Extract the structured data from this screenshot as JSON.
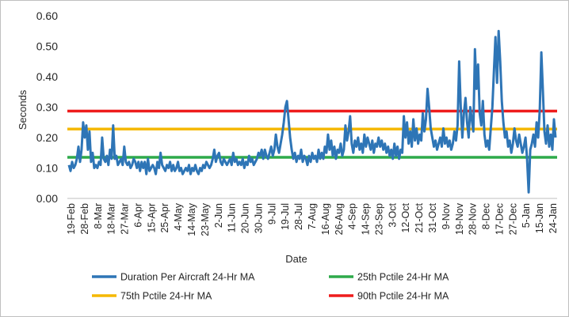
{
  "chart_data": {
    "type": "line",
    "title": "",
    "xlabel": "Date",
    "ylabel": "Seconds",
    "ylim": [
      0,
      0.6
    ],
    "yticks": [
      "0.00",
      "0.10",
      "0.20",
      "0.30",
      "0.40",
      "0.50",
      "0.60"
    ],
    "xticks": [
      "19-Feb",
      "28-Feb",
      "8-Mar",
      "18-Mar",
      "27-Mar",
      "6-Apr",
      "15-Apr",
      "25-Apr",
      "4-May",
      "14-May",
      "23-May",
      "2-Jun",
      "11-Jun",
      "20-Jun",
      "30-Jun",
      "9-Jul",
      "19-Jul",
      "28-Jul",
      "7-Aug",
      "16-Aug",
      "26-Aug",
      "4-Sep",
      "14-Sep",
      "23-Sep",
      "3-Oct",
      "12-Oct",
      "21-Oct",
      "31-Oct",
      "9-Nov",
      "19-Nov",
      "28-Nov",
      "8-Dec",
      "17-Dec",
      "27-Dec",
      "5-Jan",
      "15-Jan",
      "24-Jan"
    ],
    "grid": false,
    "legend_position": "bottom",
    "series": [
      {
        "name": "Duration Per Aircraft 24-Hr MA",
        "color": "#2e75b6",
        "kind": "line",
        "points": [
          [
            0,
            0.11
          ],
          [
            1,
            0.09
          ],
          [
            2,
            0.12
          ],
          [
            3,
            0.1
          ],
          [
            4,
            0.11
          ],
          [
            5,
            0.13
          ],
          [
            6,
            0.17
          ],
          [
            7,
            0.12
          ],
          [
            8,
            0.16
          ],
          [
            9,
            0.25
          ],
          [
            10,
            0.2
          ],
          [
            11,
            0.24
          ],
          [
            12,
            0.16
          ],
          [
            13,
            0.22
          ],
          [
            14,
            0.12
          ],
          [
            15,
            0.15
          ],
          [
            16,
            0.1
          ],
          [
            17,
            0.11
          ],
          [
            18,
            0.1
          ],
          [
            19,
            0.12
          ],
          [
            20,
            0.11
          ],
          [
            21,
            0.2
          ],
          [
            22,
            0.13
          ],
          [
            23,
            0.12
          ],
          [
            24,
            0.14
          ],
          [
            25,
            0.11
          ],
          [
            26,
            0.16
          ],
          [
            27,
            0.13
          ],
          [
            28,
            0.24
          ],
          [
            29,
            0.13
          ],
          [
            30,
            0.14
          ],
          [
            31,
            0.11
          ],
          [
            32,
            0.12
          ],
          [
            33,
            0.13
          ],
          [
            34,
            0.11
          ],
          [
            35,
            0.17
          ],
          [
            36,
            0.12
          ],
          [
            37,
            0.11
          ],
          [
            38,
            0.12
          ],
          [
            39,
            0.1
          ],
          [
            40,
            0.11
          ],
          [
            41,
            0.13
          ],
          [
            42,
            0.12
          ],
          [
            43,
            0.1
          ],
          [
            44,
            0.12
          ],
          [
            45,
            0.09
          ],
          [
            46,
            0.12
          ],
          [
            47,
            0.1
          ],
          [
            48,
            0.12
          ],
          [
            49,
            0.08
          ],
          [
            50,
            0.13
          ],
          [
            51,
            0.09
          ],
          [
            52,
            0.1
          ],
          [
            53,
            0.11
          ],
          [
            54,
            0.1
          ],
          [
            55,
            0.08
          ],
          [
            56,
            0.12
          ],
          [
            57,
            0.1
          ],
          [
            58,
            0.15
          ],
          [
            59,
            0.11
          ],
          [
            60,
            0.1
          ],
          [
            61,
            0.09
          ],
          [
            62,
            0.11
          ],
          [
            63,
            0.1
          ],
          [
            64,
            0.12
          ],
          [
            65,
            0.09
          ],
          [
            66,
            0.11
          ],
          [
            67,
            0.09
          ],
          [
            68,
            0.1
          ],
          [
            69,
            0.12
          ],
          [
            70,
            0.09
          ],
          [
            71,
            0.1
          ],
          [
            72,
            0.08
          ],
          [
            73,
            0.09
          ],
          [
            74,
            0.1
          ],
          [
            75,
            0.09
          ],
          [
            76,
            0.11
          ],
          [
            77,
            0.08
          ],
          [
            78,
            0.1
          ],
          [
            79,
            0.09
          ],
          [
            80,
            0.11
          ],
          [
            81,
            0.09
          ],
          [
            82,
            0.08
          ],
          [
            83,
            0.1
          ],
          [
            84,
            0.09
          ],
          [
            85,
            0.11
          ],
          [
            86,
            0.1
          ],
          [
            87,
            0.12
          ],
          [
            88,
            0.11
          ],
          [
            89,
            0.1
          ],
          [
            90,
            0.11
          ],
          [
            91,
            0.13
          ],
          [
            92,
            0.16
          ],
          [
            93,
            0.12
          ],
          [
            94,
            0.14
          ],
          [
            95,
            0.15
          ],
          [
            96,
            0.12
          ],
          [
            97,
            0.11
          ],
          [
            98,
            0.13
          ],
          [
            99,
            0.12
          ],
          [
            100,
            0.11
          ],
          [
            101,
            0.12
          ],
          [
            102,
            0.13
          ],
          [
            103,
            0.11
          ],
          [
            104,
            0.15
          ],
          [
            105,
            0.12
          ],
          [
            106,
            0.13
          ],
          [
            107,
            0.11
          ],
          [
            108,
            0.12
          ],
          [
            109,
            0.11
          ],
          [
            110,
            0.13
          ],
          [
            111,
            0.1
          ],
          [
            112,
            0.12
          ],
          [
            113,
            0.11
          ],
          [
            114,
            0.14
          ],
          [
            115,
            0.12
          ],
          [
            116,
            0.13
          ],
          [
            117,
            0.11
          ],
          [
            118,
            0.12
          ],
          [
            119,
            0.13
          ],
          [
            120,
            0.15
          ],
          [
            121,
            0.14
          ],
          [
            122,
            0.16
          ],
          [
            123,
            0.13
          ],
          [
            124,
            0.16
          ],
          [
            125,
            0.14
          ],
          [
            126,
            0.13
          ],
          [
            127,
            0.15
          ],
          [
            128,
            0.17
          ],
          [
            129,
            0.14
          ],
          [
            130,
            0.16
          ],
          [
            131,
            0.21
          ],
          [
            132,
            0.17
          ],
          [
            133,
            0.15
          ],
          [
            134,
            0.18
          ],
          [
            135,
            0.21
          ],
          [
            136,
            0.25
          ],
          [
            137,
            0.3
          ],
          [
            138,
            0.32
          ],
          [
            139,
            0.26
          ],
          [
            140,
            0.2
          ],
          [
            141,
            0.16
          ],
          [
            142,
            0.13
          ],
          [
            143,
            0.15
          ],
          [
            144,
            0.12
          ],
          [
            145,
            0.14
          ],
          [
            146,
            0.13
          ],
          [
            147,
            0.16
          ],
          [
            148,
            0.12
          ],
          [
            149,
            0.14
          ],
          [
            150,
            0.13
          ],
          [
            151,
            0.11
          ],
          [
            152,
            0.14
          ],
          [
            153,
            0.12
          ],
          [
            154,
            0.15
          ],
          [
            155,
            0.13
          ],
          [
            156,
            0.14
          ],
          [
            157,
            0.12
          ],
          [
            158,
            0.16
          ],
          [
            159,
            0.13
          ],
          [
            160,
            0.15
          ],
          [
            161,
            0.13
          ],
          [
            162,
            0.17
          ],
          [
            163,
            0.15
          ],
          [
            164,
            0.21
          ],
          [
            165,
            0.16
          ],
          [
            166,
            0.19
          ],
          [
            167,
            0.14
          ],
          [
            168,
            0.17
          ],
          [
            169,
            0.13
          ],
          [
            170,
            0.16
          ],
          [
            171,
            0.15
          ],
          [
            172,
            0.18
          ],
          [
            173,
            0.14
          ],
          [
            174,
            0.16
          ],
          [
            175,
            0.24
          ],
          [
            176,
            0.19
          ],
          [
            177,
            0.22
          ],
          [
            178,
            0.27
          ],
          [
            179,
            0.18
          ],
          [
            180,
            0.15
          ],
          [
            181,
            0.19
          ],
          [
            182,
            0.17
          ],
          [
            183,
            0.2
          ],
          [
            184,
            0.16
          ],
          [
            185,
            0.18
          ],
          [
            186,
            0.15
          ],
          [
            187,
            0.21
          ],
          [
            188,
            0.17
          ],
          [
            189,
            0.2
          ],
          [
            190,
            0.18
          ],
          [
            191,
            0.16
          ],
          [
            192,
            0.19
          ],
          [
            193,
            0.15
          ],
          [
            194,
            0.18
          ],
          [
            195,
            0.17
          ],
          [
            196,
            0.2
          ],
          [
            197,
            0.17
          ],
          [
            198,
            0.19
          ],
          [
            199,
            0.16
          ],
          [
            200,
            0.18
          ],
          [
            201,
            0.15
          ],
          [
            202,
            0.17
          ],
          [
            203,
            0.14
          ],
          [
            204,
            0.16
          ],
          [
            205,
            0.13
          ],
          [
            206,
            0.18
          ],
          [
            207,
            0.14
          ],
          [
            208,
            0.17
          ],
          [
            209,
            0.13
          ],
          [
            210,
            0.16
          ],
          [
            211,
            0.15
          ],
          [
            212,
            0.27
          ],
          [
            213,
            0.2
          ],
          [
            214,
            0.25
          ],
          [
            215,
            0.18
          ],
          [
            216,
            0.22
          ],
          [
            217,
            0.17
          ],
          [
            218,
            0.26
          ],
          [
            219,
            0.19
          ],
          [
            220,
            0.23
          ],
          [
            221,
            0.18
          ],
          [
            222,
            0.21
          ],
          [
            223,
            0.19
          ],
          [
            224,
            0.28
          ],
          [
            225,
            0.22
          ],
          [
            226,
            0.26
          ],
          [
            227,
            0.36
          ],
          [
            228,
            0.3
          ],
          [
            229,
            0.23
          ],
          [
            230,
            0.2
          ],
          [
            231,
            0.17
          ],
          [
            232,
            0.19
          ],
          [
            233,
            0.16
          ],
          [
            234,
            0.18
          ],
          [
            235,
            0.2
          ],
          [
            236,
            0.17
          ],
          [
            237,
            0.23
          ],
          [
            238,
            0.18
          ],
          [
            239,
            0.2
          ],
          [
            240,
            0.17
          ],
          [
            241,
            0.19
          ],
          [
            242,
            0.16
          ],
          [
            243,
            0.18
          ],
          [
            244,
            0.22
          ],
          [
            245,
            0.19
          ],
          [
            246,
            0.24
          ],
          [
            247,
            0.45
          ],
          [
            248,
            0.3
          ],
          [
            249,
            0.2
          ],
          [
            250,
            0.28
          ],
          [
            251,
            0.33
          ],
          [
            252,
            0.25
          ],
          [
            253,
            0.2
          ],
          [
            254,
            0.3
          ],
          [
            255,
            0.26
          ],
          [
            256,
            0.22
          ],
          [
            257,
            0.49
          ],
          [
            258,
            0.36
          ],
          [
            259,
            0.44
          ],
          [
            260,
            0.28
          ],
          [
            261,
            0.24
          ],
          [
            262,
            0.32
          ],
          [
            263,
            0.21
          ],
          [
            264,
            0.17
          ],
          [
            265,
            0.19
          ],
          [
            266,
            0.16
          ],
          [
            267,
            0.23
          ],
          [
            268,
            0.3
          ],
          [
            269,
            0.42
          ],
          [
            270,
            0.53
          ],
          [
            271,
            0.38
          ],
          [
            272,
            0.55
          ],
          [
            273,
            0.45
          ],
          [
            274,
            0.32
          ],
          [
            275,
            0.25
          ],
          [
            276,
            0.2
          ],
          [
            277,
            0.22
          ],
          [
            278,
            0.17
          ],
          [
            279,
            0.19
          ],
          [
            280,
            0.15
          ],
          [
            281,
            0.18
          ],
          [
            282,
            0.23
          ],
          [
            283,
            0.19
          ],
          [
            284,
            0.17
          ],
          [
            285,
            0.21
          ],
          [
            286,
            0.18
          ],
          [
            287,
            0.15
          ],
          [
            288,
            0.17
          ],
          [
            289,
            0.2
          ],
          [
            290,
            0.13
          ],
          [
            291,
            0.02
          ],
          [
            292,
            0.16
          ],
          [
            293,
            0.18
          ],
          [
            294,
            0.21
          ],
          [
            295,
            0.17
          ],
          [
            296,
            0.25
          ],
          [
            297,
            0.2
          ],
          [
            298,
            0.29
          ],
          [
            299,
            0.48
          ],
          [
            300,
            0.35
          ],
          [
            301,
            0.22
          ],
          [
            302,
            0.18
          ],
          [
            303,
            0.24
          ],
          [
            304,
            0.17
          ],
          [
            305,
            0.21
          ],
          [
            306,
            0.16
          ],
          [
            307,
            0.26
          ],
          [
            308,
            0.2
          ]
        ]
      },
      {
        "name": "25th Pctile 24-Hr MA",
        "color": "#2eaa4a",
        "kind": "hline",
        "value": 0.135
      },
      {
        "name": "75th Pctile 24-Hr MA",
        "color": "#f5b800",
        "kind": "hline",
        "value": 0.228
      },
      {
        "name": "90th Pctile 24-Hr MA",
        "color": "#ee1c1c",
        "kind": "hline",
        "value": 0.287
      }
    ]
  }
}
